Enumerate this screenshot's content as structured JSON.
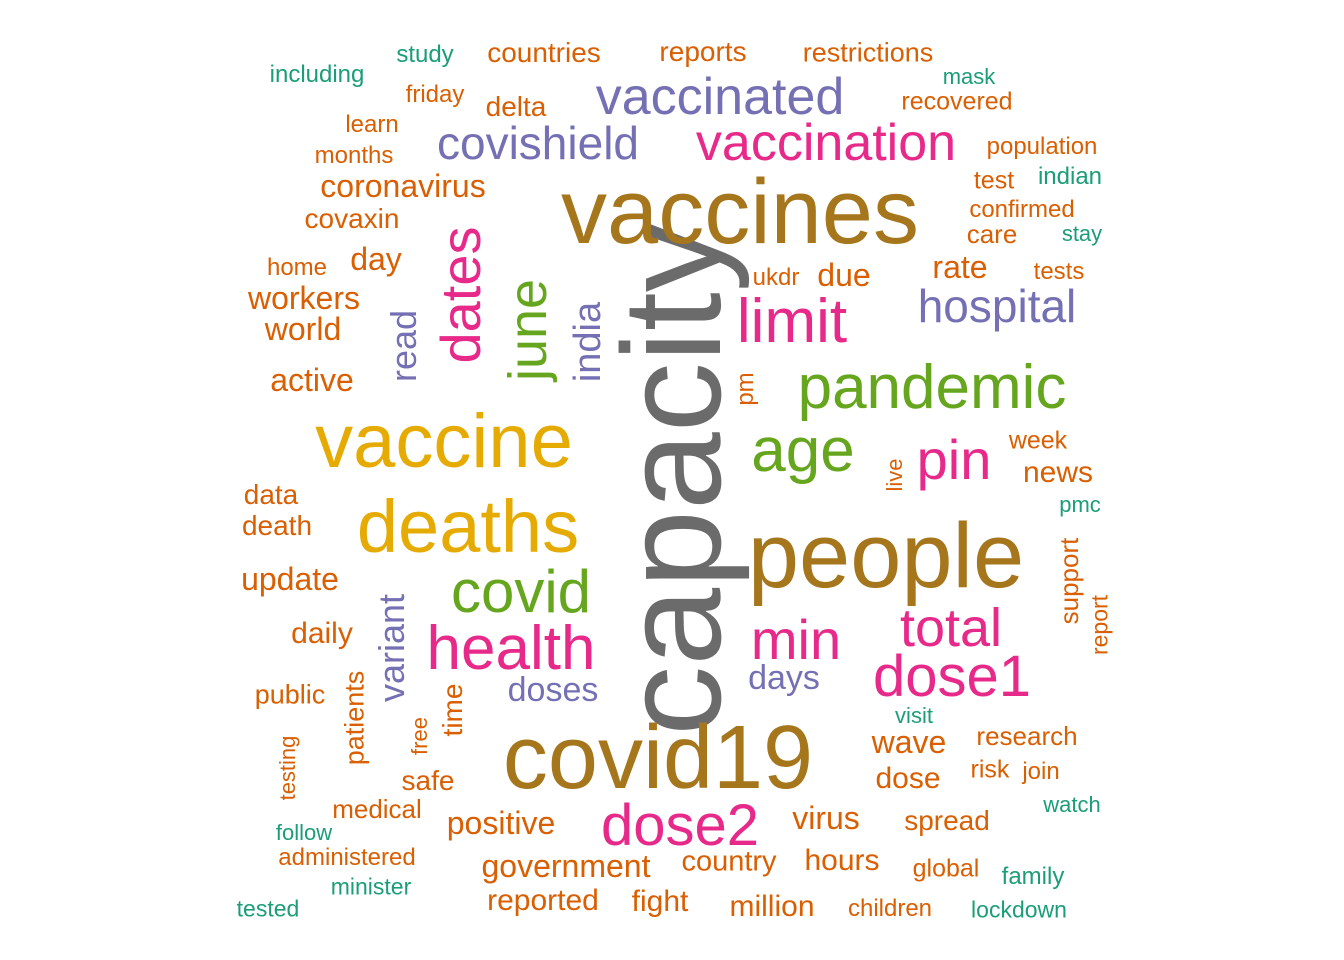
{
  "chart_data": {
    "type": "wordcloud",
    "title": "",
    "palette": [
      "#6b6b6b",
      "#a6761d",
      "#e6ab02",
      "#66a61e",
      "#e7298a",
      "#7570b3",
      "#d95f02",
      "#1b9e77"
    ],
    "words": [
      {
        "text": "capacity",
        "freq": 100,
        "color": "#6b6b6b",
        "rotated": true
      },
      {
        "text": "vaccines",
        "freq": 84,
        "color": "#a6761d",
        "rotated": false
      },
      {
        "text": "covid19",
        "freq": 82,
        "color": "#a6761d",
        "rotated": false
      },
      {
        "text": "people",
        "freq": 80,
        "color": "#a6761d",
        "rotated": false
      },
      {
        "text": "vaccine",
        "freq": 70,
        "color": "#e6ab02",
        "rotated": false
      },
      {
        "text": "deaths",
        "freq": 66,
        "color": "#e6ab02",
        "rotated": false
      },
      {
        "text": "pandemic",
        "freq": 58,
        "color": "#66a61e",
        "rotated": false
      },
      {
        "text": "covid",
        "freq": 58,
        "color": "#66a61e",
        "rotated": false
      },
      {
        "text": "age",
        "freq": 58,
        "color": "#66a61e",
        "rotated": false
      },
      {
        "text": "june",
        "freq": 54,
        "color": "#66a61e",
        "rotated": true
      },
      {
        "text": "dose2",
        "freq": 56,
        "color": "#e7298a",
        "rotated": false
      },
      {
        "text": "health",
        "freq": 56,
        "color": "#e7298a",
        "rotated": false
      },
      {
        "text": "dose1",
        "freq": 56,
        "color": "#e7298a",
        "rotated": false
      },
      {
        "text": "dates",
        "freq": 54,
        "color": "#e7298a",
        "rotated": true
      },
      {
        "text": "limit",
        "freq": 54,
        "color": "#e7298a",
        "rotated": false
      },
      {
        "text": "min",
        "freq": 50,
        "color": "#e7298a",
        "rotated": false
      },
      {
        "text": "pin",
        "freq": 50,
        "color": "#e7298a",
        "rotated": false
      },
      {
        "text": "total",
        "freq": 50,
        "color": "#e7298a",
        "rotated": false
      },
      {
        "text": "vaccination",
        "freq": 48,
        "color": "#e7298a",
        "rotated": false
      },
      {
        "text": "vaccinated",
        "freq": 48,
        "color": "#7570b3",
        "rotated": false
      },
      {
        "text": "covishield",
        "freq": 44,
        "color": "#7570b3",
        "rotated": false
      },
      {
        "text": "hospital",
        "freq": 44,
        "color": "#7570b3",
        "rotated": false
      },
      {
        "text": "india",
        "freq": 40,
        "color": "#7570b3",
        "rotated": true
      },
      {
        "text": "read",
        "freq": 40,
        "color": "#7570b3",
        "rotated": true
      },
      {
        "text": "variant",
        "freq": 40,
        "color": "#7570b3",
        "rotated": true
      },
      {
        "text": "doses",
        "freq": 36,
        "color": "#7570b3",
        "rotated": false
      },
      {
        "text": "days",
        "freq": 36,
        "color": "#7570b3",
        "rotated": false
      },
      {
        "text": "coronavirus",
        "freq": 34,
        "color": "#d95f02",
        "rotated": false
      },
      {
        "text": "positive",
        "freq": 34,
        "color": "#d95f02",
        "rotated": false
      },
      {
        "text": "government",
        "freq": 33,
        "color": "#d95f02",
        "rotated": false
      },
      {
        "text": "wave",
        "freq": 33,
        "color": "#d95f02",
        "rotated": false
      },
      {
        "text": "active",
        "freq": 33,
        "color": "#d95f02",
        "rotated": false
      },
      {
        "text": "update",
        "freq": 32,
        "color": "#d95f02",
        "rotated": false
      },
      {
        "text": "virus",
        "freq": 32,
        "color": "#d95f02",
        "rotated": false
      },
      {
        "text": "rate",
        "freq": 32,
        "color": "#d95f02",
        "rotated": false
      },
      {
        "text": "due",
        "freq": 32,
        "color": "#d95f02",
        "rotated": false
      },
      {
        "text": "day",
        "freq": 32,
        "color": "#d95f02",
        "rotated": false
      },
      {
        "text": "workers",
        "freq": 31,
        "color": "#d95f02",
        "rotated": false
      },
      {
        "text": "world",
        "freq": 31,
        "color": "#d95f02",
        "rotated": false
      },
      {
        "text": "daily",
        "freq": 31,
        "color": "#d95f02",
        "rotated": false
      },
      {
        "text": "reported",
        "freq": 31,
        "color": "#d95f02",
        "rotated": false
      },
      {
        "text": "fight",
        "freq": 31,
        "color": "#d95f02",
        "rotated": false
      },
      {
        "text": "million",
        "freq": 31,
        "color": "#d95f02",
        "rotated": false
      },
      {
        "text": "hours",
        "freq": 31,
        "color": "#d95f02",
        "rotated": false
      },
      {
        "text": "country",
        "freq": 30,
        "color": "#d95f02",
        "rotated": false
      },
      {
        "text": "dose",
        "freq": 30,
        "color": "#d95f02",
        "rotated": false
      },
      {
        "text": "reports",
        "freq": 30,
        "color": "#d95f02",
        "rotated": false
      },
      {
        "text": "countries",
        "freq": 29,
        "color": "#d95f02",
        "rotated": false
      },
      {
        "text": "delta",
        "freq": 29,
        "color": "#d95f02",
        "rotated": false
      },
      {
        "text": "data",
        "freq": 29,
        "color": "#d95f02",
        "rotated": false
      },
      {
        "text": "death",
        "freq": 29,
        "color": "#d95f02",
        "rotated": false
      },
      {
        "text": "news",
        "freq": 29,
        "color": "#d95f02",
        "rotated": false
      },
      {
        "text": "covaxin",
        "freq": 29,
        "color": "#d95f02",
        "rotated": false
      },
      {
        "text": "time",
        "freq": 29,
        "color": "#d95f02",
        "rotated": true
      },
      {
        "text": "patients",
        "freq": 28,
        "color": "#d95f02",
        "rotated": true
      },
      {
        "text": "spread",
        "freq": 28,
        "color": "#d95f02",
        "rotated": false
      },
      {
        "text": "safe",
        "freq": 28,
        "color": "#d95f02",
        "rotated": false
      },
      {
        "text": "medical",
        "freq": 28,
        "color": "#d95f02",
        "rotated": false
      },
      {
        "text": "public",
        "freq": 28,
        "color": "#d95f02",
        "rotated": false
      },
      {
        "text": "restrictions",
        "freq": 28,
        "color": "#d95f02",
        "rotated": false
      },
      {
        "text": "research",
        "freq": 27,
        "color": "#d95f02",
        "rotated": false
      },
      {
        "text": "support",
        "freq": 27,
        "color": "#d95f02",
        "rotated": true
      },
      {
        "text": "population",
        "freq": 26,
        "color": "#d95f02",
        "rotated": false
      },
      {
        "text": "recovered",
        "freq": 26,
        "color": "#d95f02",
        "rotated": false
      },
      {
        "text": "confirmed",
        "freq": 26,
        "color": "#d95f02",
        "rotated": false
      },
      {
        "text": "care",
        "freq": 26,
        "color": "#d95f02",
        "rotated": false
      },
      {
        "text": "test",
        "freq": 26,
        "color": "#d95f02",
        "rotated": false
      },
      {
        "text": "week",
        "freq": 26,
        "color": "#d95f02",
        "rotated": false
      },
      {
        "text": "risk",
        "freq": 26,
        "color": "#d95f02",
        "rotated": false
      },
      {
        "text": "home",
        "freq": 26,
        "color": "#d95f02",
        "rotated": false
      },
      {
        "text": "months",
        "freq": 26,
        "color": "#d95f02",
        "rotated": false
      },
      {
        "text": "learn",
        "freq": 26,
        "color": "#d95f02",
        "rotated": false
      },
      {
        "text": "friday",
        "freq": 26,
        "color": "#d95f02",
        "rotated": false
      },
      {
        "text": "administered",
        "freq": 26,
        "color": "#d95f02",
        "rotated": false
      },
      {
        "text": "global",
        "freq": 26,
        "color": "#d95f02",
        "rotated": false
      },
      {
        "text": "children",
        "freq": 26,
        "color": "#d95f02",
        "rotated": false
      },
      {
        "text": "pm",
        "freq": 26,
        "color": "#d95f02",
        "rotated": true
      },
      {
        "text": "ukdr",
        "freq": 26,
        "color": "#d95f02",
        "rotated": false
      },
      {
        "text": "tests",
        "freq": 25,
        "color": "#d95f02",
        "rotated": false
      },
      {
        "text": "live",
        "freq": 25,
        "color": "#d95f02",
        "rotated": true
      },
      {
        "text": "free",
        "freq": 25,
        "color": "#d95f02",
        "rotated": true
      },
      {
        "text": "report",
        "freq": 25,
        "color": "#d95f02",
        "rotated": true
      },
      {
        "text": "testing",
        "freq": 25,
        "color": "#d95f02",
        "rotated": true
      },
      {
        "text": "join",
        "freq": 25,
        "color": "#d95f02",
        "rotated": false
      },
      {
        "text": "study",
        "freq": 25,
        "color": "#1b9e77",
        "rotated": false
      },
      {
        "text": "including",
        "freq": 25,
        "color": "#1b9e77",
        "rotated": false
      },
      {
        "text": "mask",
        "freq": 24,
        "color": "#1b9e77",
        "rotated": false
      },
      {
        "text": "indian",
        "freq": 25,
        "color": "#1b9e77",
        "rotated": false
      },
      {
        "text": "stay",
        "freq": 24,
        "color": "#1b9e77",
        "rotated": false
      },
      {
        "text": "pmc",
        "freq": 24,
        "color": "#1b9e77",
        "rotated": false
      },
      {
        "text": "visit",
        "freq": 24,
        "color": "#1b9e77",
        "rotated": false
      },
      {
        "text": "watch",
        "freq": 24,
        "color": "#1b9e77",
        "rotated": false
      },
      {
        "text": "family",
        "freq": 25,
        "color": "#1b9e77",
        "rotated": false
      },
      {
        "text": "lockdown",
        "freq": 24,
        "color": "#1b9e77",
        "rotated": false
      },
      {
        "text": "follow",
        "freq": 24,
        "color": "#1b9e77",
        "rotated": false
      },
      {
        "text": "minister",
        "freq": 24,
        "color": "#1b9e77",
        "rotated": false
      },
      {
        "text": "tested",
        "freq": 24,
        "color": "#1b9e77",
        "rotated": false
      }
    ]
  }
}
